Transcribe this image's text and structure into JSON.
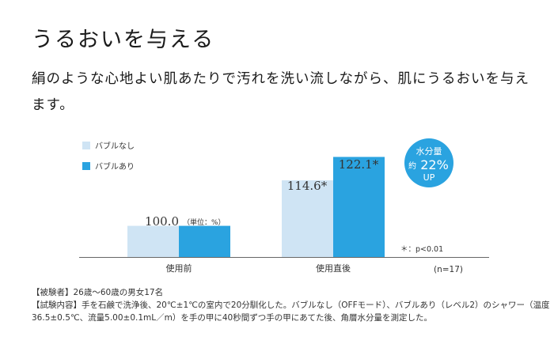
{
  "heading": "うるおいを与える",
  "lead": "絹のような心地よい肌あたりで汚れを洗い流しながら、肌にうるおいを与えます。",
  "chart_data": {
    "type": "bar",
    "categories": [
      "使用前",
      "使用直後"
    ],
    "series": [
      {
        "name": "バブルなし",
        "color": "#cfe4f4",
        "values": [
          100.0,
          114.6
        ],
        "labels": [
          "",
          "114.6*"
        ]
      },
      {
        "name": "バブルあり",
        "color": "#2aa3e0",
        "values": [
          100.0,
          122.1
        ],
        "labels": [
          "",
          "122.1*"
        ]
      }
    ],
    "group_label": "100.0",
    "unit_note": "（単位：%）",
    "ylim": [
      90,
      125
    ],
    "grid": false,
    "legend": "top-left",
    "badge": {
      "line1": "水分量",
      "prefix": "約",
      "value": "22%",
      "line3": "UP",
      "color": "#2aa3e0"
    },
    "significance_note": "＊：p<0.01",
    "n_note": "(n=17)"
  },
  "notes": {
    "subjects": "【被験者】26歳～60歳の男女17名",
    "test_line1": "【試験内容】手を石鹸で洗浄後、20℃±1℃の室内で20分馴化した。バブルなし（OFFモード）、バブルあり（レベル2）のシャワー（温度",
    "test_line2": "36.5±0.5℃、流量5.00±0.1mL／m）を手の甲に40秒間ずつ手の甲にあてた後、角層水分量を測定した。"
  }
}
